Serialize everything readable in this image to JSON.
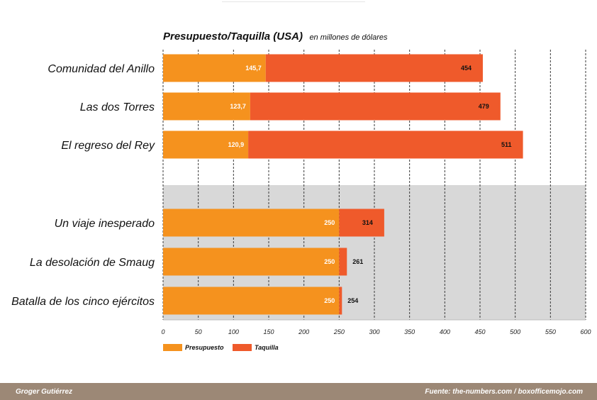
{
  "colors": {
    "budget": "#f5921e",
    "boxoffice": "#ef5a2b",
    "band": "#d8d8d8",
    "footer": "#9c8876"
  },
  "chart_data": {
    "type": "bar",
    "orientation": "horizontal",
    "title": "Presupuesto/Taquilla (USA)",
    "subtitle": "en millones de dólares",
    "categories": [
      "Comunidad del Anillo",
      "Las dos Torres",
      "El regreso del Rey",
      "Un viaje inesperado",
      "La desolación de Smaug",
      "Batalla de los cinco ejércitos"
    ],
    "category_groups": [
      [
        0,
        1,
        2
      ],
      [
        3,
        4,
        5
      ]
    ],
    "series": [
      {
        "name": "Presupuesto",
        "values": [
          145.7,
          123.7,
          120.9,
          250,
          250,
          250
        ],
        "labels": [
          "145,7",
          "123,7",
          "120,9",
          "250",
          "250",
          "250"
        ]
      },
      {
        "name": "Taquilla",
        "values": [
          454,
          479,
          511,
          314,
          261,
          254
        ],
        "labels": [
          "454",
          "479",
          "511",
          "314",
          "261",
          "254"
        ]
      }
    ],
    "xlim": [
      0,
      600
    ],
    "xticks": [
      0,
      50,
      100,
      150,
      200,
      250,
      300,
      350,
      400,
      450,
      500,
      550,
      600
    ],
    "grid": "vertical dashed",
    "shaded_group": 1,
    "legend": "bottom-left"
  },
  "footer": {
    "author": "Groger Gutiérrez",
    "source": "Fuente: the-numbers.com / boxofficemojo.com"
  }
}
